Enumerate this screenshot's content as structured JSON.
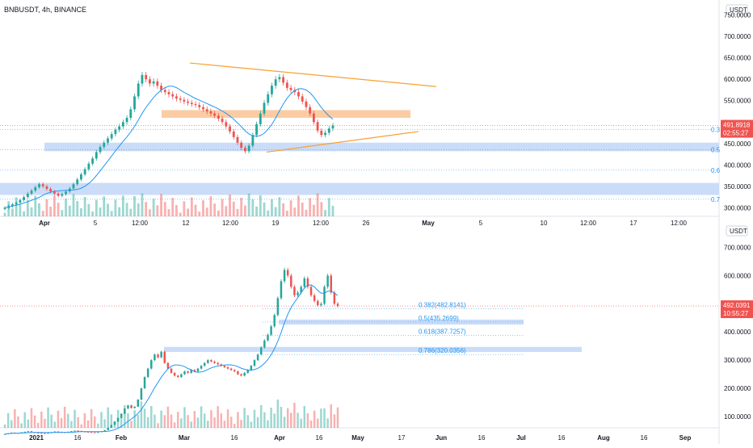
{
  "header": {
    "symbol_line": "BNBUSDT, 4h, BINANCE"
  },
  "colors": {
    "up": "#26a69a",
    "down": "#ef5350",
    "ma": "#2196f3",
    "trendline": "#f7a032",
    "zone_orange": "#fbc69a",
    "zone_blue": "#c4d8f7",
    "fib_text": "#2196f3",
    "price_label": "#ef5350",
    "axis_text": "#131722"
  },
  "chart_data": [
    {
      "type": "candlestick",
      "timeframe": "4h",
      "currency_label": "USDT",
      "y_ticks": [
        "750.0000",
        "700.0000",
        "650.0000",
        "600.0000",
        "550.0000",
        "500.0000",
        "450.0000",
        "400.0000",
        "350.0000",
        "300.0000"
      ],
      "ylim": [
        280,
        770
      ],
      "x_ticks": [
        "Apr",
        "5",
        "12:00",
        "12",
        "12:00",
        "19",
        "12:00",
        "26",
        "May",
        "5",
        "10",
        "12:00",
        "17",
        "12:00"
      ],
      "last_price": "491.8918",
      "countdown": "02:55:27",
      "fib_levels": [
        {
          "label": "0.3",
          "price": 482.8
        },
        {
          "label": "0.5",
          "price": 435.3
        },
        {
          "label": "0.6",
          "price": 387.7
        },
        {
          "label": "0.7",
          "price": 320.0
        }
      ],
      "zones": [
        {
          "color": "orange",
          "low": 510,
          "high": 528
        },
        {
          "color": "blue",
          "low": 432,
          "high": 452
        },
        {
          "color": "blue",
          "low": 330,
          "high": 358
        }
      ],
      "trendlines": [
        {
          "from": [
            12,
            638
          ],
          "to": [
            29,
            583
          ]
        },
        {
          "from": [
            18,
            430
          ],
          "to": [
            29,
            478
          ]
        }
      ],
      "closes": [
        300,
        304,
        308,
        312,
        318,
        325,
        333,
        340,
        348,
        355,
        350,
        344,
        338,
        333,
        328,
        332,
        338,
        345,
        355,
        366,
        378,
        390,
        403,
        415,
        430,
        442,
        452,
        462,
        472,
        482,
        490,
        500,
        510,
        530,
        560,
        590,
        610,
        600,
        590,
        595,
        585,
        575,
        570,
        565,
        560,
        555,
        552,
        548,
        545,
        542,
        540,
        535,
        530,
        525,
        520,
        515,
        508,
        500,
        490,
        478,
        465,
        452,
        440,
        432,
        445,
        470,
        495,
        520,
        545,
        565,
        585,
        600,
        605,
        592,
        580,
        575,
        570,
        560,
        548,
        535,
        520,
        500,
        480,
        470,
        475,
        485,
        492
      ]
    },
    {
      "type": "candlestick",
      "timeframe": "1D",
      "currency_label": "USDT",
      "y_ticks": [
        "700.0000",
        "600.0000",
        "500.0000",
        "400.0000",
        "300.0000",
        "200.0000",
        "100.0000"
      ],
      "ylim": [
        60,
        770
      ],
      "x_ticks": [
        "2021",
        "16",
        "Feb",
        "Mar",
        "16",
        "Apr",
        "16",
        "May",
        "17",
        "Jun",
        "16",
        "Jul",
        "16",
        "Aug",
        "16",
        "Sep"
      ],
      "last_price": "492.0391",
      "countdown": "10:55:27",
      "fib_levels": [
        {
          "label": "0.382(482.8141)",
          "price": 482.8141
        },
        {
          "label": "0.5(435.2699)",
          "price": 435.2699
        },
        {
          "label": "0.618(387.7257)",
          "price": 387.7257
        },
        {
          "label": "0.786(320.0356)",
          "price": 320.0356
        }
      ],
      "zones": [
        {
          "color": "blue",
          "low": 426,
          "high": 444
        },
        {
          "color": "blue",
          "low": 329,
          "high": 347
        }
      ],
      "closes": [
        38,
        40,
        43,
        42,
        41,
        44,
        46,
        48,
        45,
        43,
        42,
        41,
        40,
        42,
        44,
        47,
        46,
        45,
        44,
        46,
        48,
        50,
        49,
        47,
        46,
        45,
        44,
        43,
        45,
        48,
        52,
        60,
        70,
        82,
        95,
        110,
        128,
        140,
        130,
        135,
        160,
        200,
        240,
        270,
        300,
        320,
        310,
        330,
        290,
        270,
        255,
        245,
        240,
        250,
        260,
        255,
        265,
        260,
        270,
        280,
        290,
        300,
        295,
        290,
        285,
        280,
        275,
        270,
        265,
        260,
        250,
        245,
        255,
        265,
        280,
        300,
        320,
        345,
        370,
        390,
        420,
        460,
        520,
        580,
        620,
        600,
        560,
        530,
        540,
        560,
        590,
        560,
        530,
        510,
        495,
        500,
        560,
        600,
        540,
        500,
        492
      ]
    }
  ]
}
